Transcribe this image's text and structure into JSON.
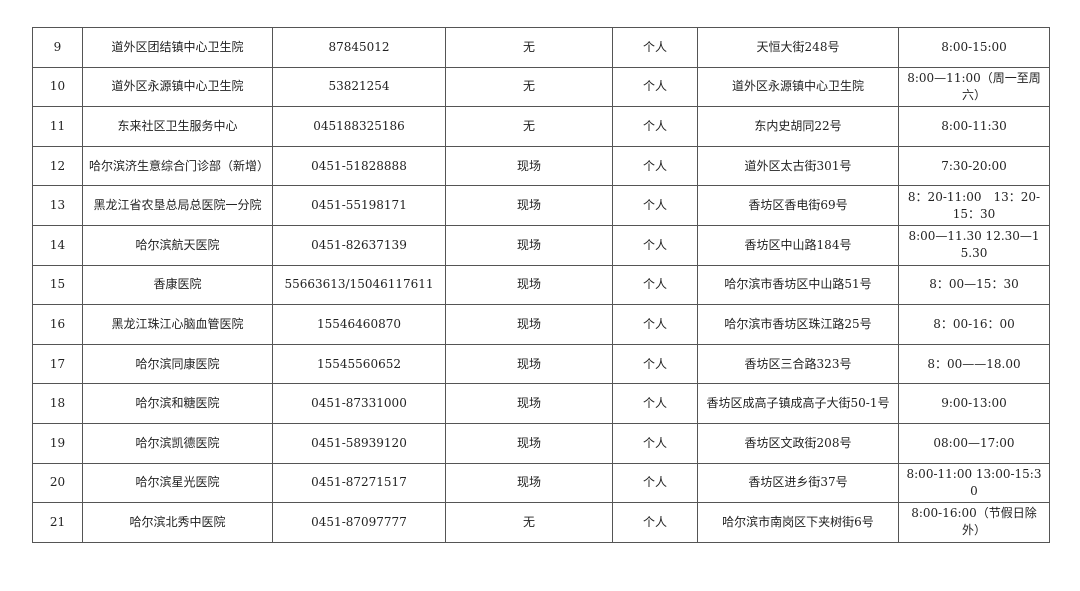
{
  "table": {
    "rows": [
      [
        "9",
        "道外区团结镇中心卫生院",
        "87845012",
        "无",
        "个人",
        "天恒大街248号",
        "8:00-15:00"
      ],
      [
        "10",
        "道外区永源镇中心卫生院",
        "53821254",
        "无",
        "个人",
        "道外区永源镇中心卫生院",
        "8:00—11:00（周一至周六）"
      ],
      [
        "11",
        "东来社区卫生服务中心",
        "045188325186",
        "无",
        "个人",
        "东内史胡同22号",
        "8:00-11:30"
      ],
      [
        "12",
        "哈尔滨济生意综合门诊部（新增）",
        "0451-51828888",
        "现场",
        "个人",
        "道外区太古街301号",
        "7:30-20:00"
      ],
      [
        "13",
        "黑龙江省农垦总局总医院一分院",
        "0451-55198171",
        "现场",
        "个人",
        "香坊区香电街69号",
        "8：20-11:00　13：20-15：30"
      ],
      [
        "14",
        "哈尔滨航天医院",
        "0451-82637139",
        "现场",
        "个人",
        "香坊区中山路184号",
        "8:00—11.30 12.30—15.30"
      ],
      [
        "15",
        "香康医院",
        "55663613/15046117611",
        "现场",
        "个人",
        "哈尔滨市香坊区中山路51号",
        "8：00—15：30"
      ],
      [
        "16",
        "黑龙江珠江心脑血管医院",
        "15546460870",
        "现场",
        "个人",
        "哈尔滨市香坊区珠江路25号",
        "8：00-16：00"
      ],
      [
        "17",
        "哈尔滨同康医院",
        "15545560652",
        "现场",
        "个人",
        "香坊区三合路323号",
        "8：00——18.00"
      ],
      [
        "18",
        "哈尔滨和糖医院",
        "0451-87331000",
        "现场",
        "个人",
        "香坊区成高子镇成高子大街50-1号",
        "9:00-13:00"
      ],
      [
        "19",
        "哈尔滨凯德医院",
        "0451-58939120",
        "现场",
        "个人",
        "香坊区文政街208号",
        "08:00—17:00"
      ],
      [
        "20",
        "哈尔滨星光医院",
        "0451-87271517",
        "现场",
        "个人",
        "香坊区进乡街37号",
        "8:00-11:00 13:00-15:30"
      ],
      [
        "21",
        "哈尔滨北秀中医院",
        "0451-87097777",
        "无",
        "个人",
        "哈尔滨市南岗区下夹树街6号",
        "8:00-16:00（节假日除外）"
      ]
    ]
  }
}
